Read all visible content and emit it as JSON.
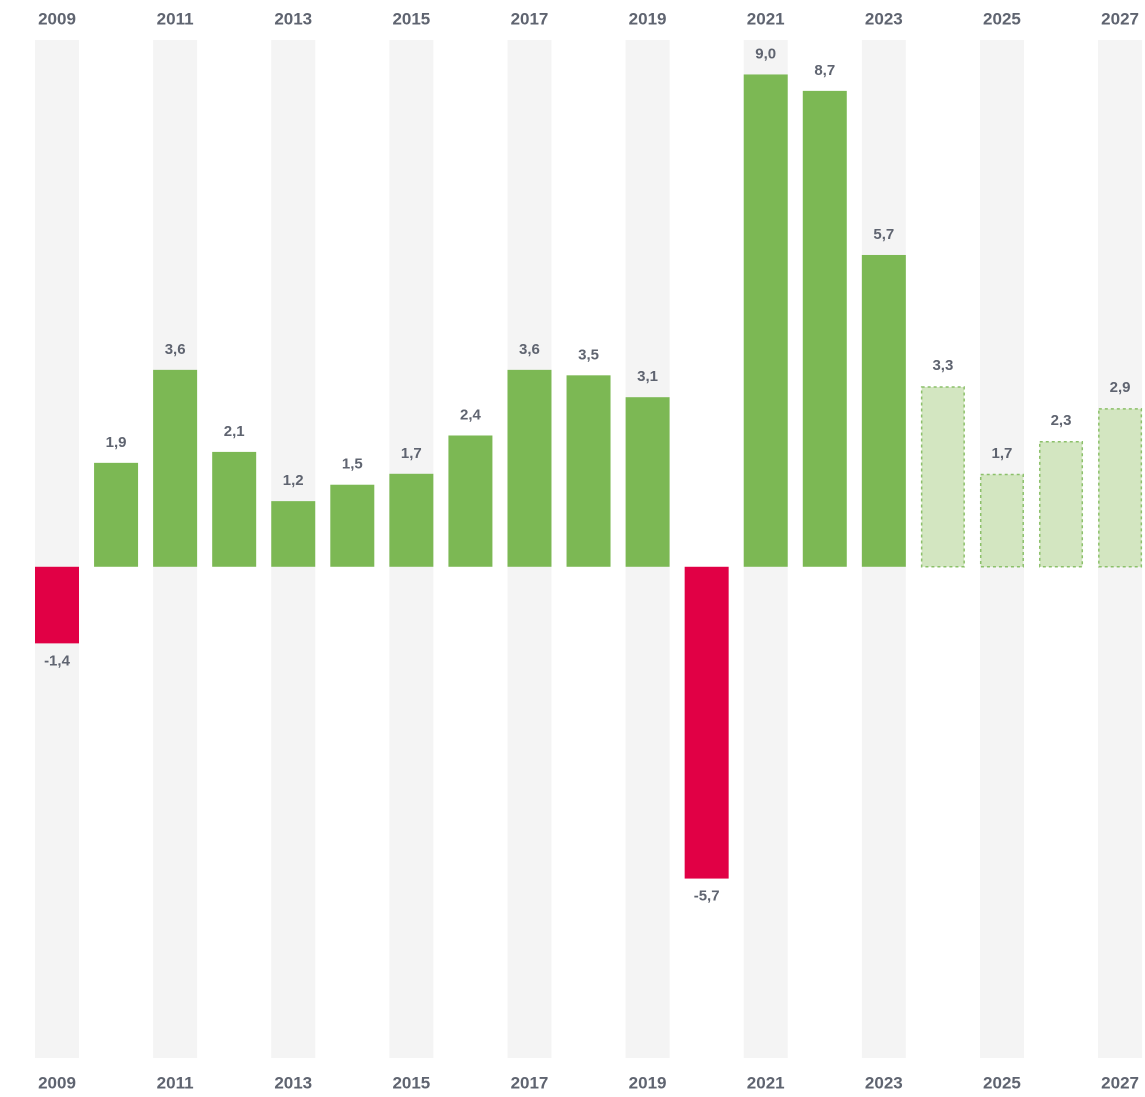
{
  "chart_data": {
    "type": "bar",
    "categories": [
      "2009",
      null,
      "2011",
      null,
      "2013",
      null,
      "2015",
      null,
      "2017",
      null,
      "2019",
      null,
      "2021",
      null,
      "2023",
      null,
      "2025",
      null,
      "2027"
    ],
    "values": [
      -1.4,
      1.9,
      3.6,
      2.1,
      1.2,
      1.5,
      1.7,
      2.4,
      3.6,
      3.5,
      3.1,
      -5.7,
      9.0,
      8.7,
      5.7,
      3.3,
      1.7,
      2.3,
      2.9
    ],
    "value_labels": [
      "-1,4",
      "1,9",
      "3,6",
      "2,1",
      "1,2",
      "1,5",
      "1,7",
      "2,4",
      "3,6",
      "3,5",
      "3,1",
      "-5,7",
      "9,0",
      "8,7",
      "5,7",
      "3,3",
      "1,7",
      "2,3",
      "2,9"
    ],
    "colors": [
      "#e10045",
      "#7cb854",
      "#7cb854",
      "#7cb854",
      "#7cb854",
      "#7cb854",
      "#7cb854",
      "#7cb854",
      "#7cb854",
      "#7cb854",
      "#7cb854",
      "#e10045",
      "#7cb854",
      "#7cb854",
      "#7cb854",
      "#d3e6c1",
      "#d3e6c1",
      "#d3e6c1",
      "#d3e6c1"
    ],
    "dashed": [
      false,
      false,
      false,
      false,
      false,
      false,
      false,
      false,
      false,
      false,
      false,
      false,
      false,
      false,
      false,
      true,
      true,
      true,
      true
    ],
    "ylim": [
      -8.98,
      9.63
    ]
  }
}
